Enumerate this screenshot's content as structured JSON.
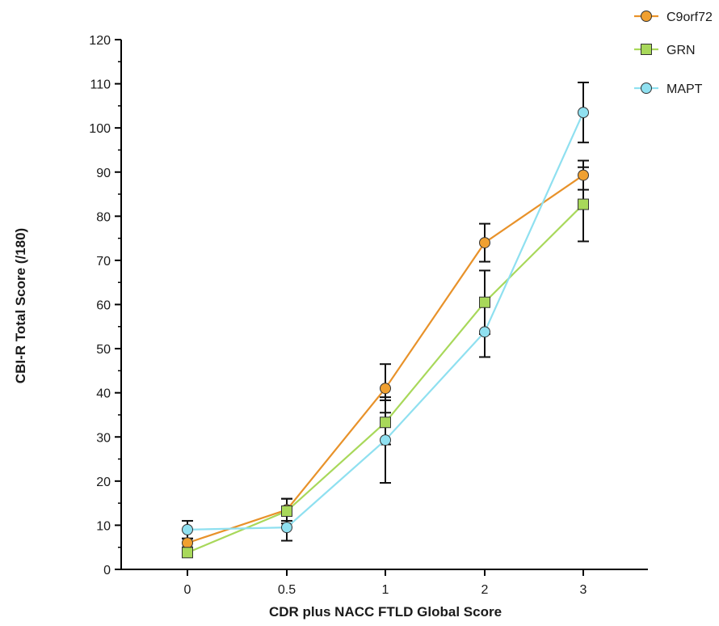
{
  "chart_data": {
    "type": "line",
    "title": "",
    "xlabel": "CDR plus NACC FTLD Global Score",
    "ylabel": "CBI-R Total Score (/180)",
    "categories": [
      "0",
      "0.5",
      "1",
      "2",
      "3"
    ],
    "ylim": [
      0,
      120
    ],
    "yticks": [
      0,
      10,
      20,
      30,
      40,
      50,
      60,
      70,
      80,
      90,
      100,
      110,
      120
    ],
    "grid": false,
    "legend_position": "top-right",
    "series": [
      {
        "name": "C9orf72",
        "marker": "circle",
        "color": "#f0a030",
        "line_color": "#e8922a",
        "values": [
          6.0,
          13.5,
          41.0,
          74.0,
          89.3
        ],
        "error": [
          1.0,
          2.5,
          5.5,
          4.3,
          3.3
        ]
      },
      {
        "name": "GRN",
        "marker": "square",
        "color": "#a8d85a",
        "line_color": "#a8d85a",
        "values": [
          3.8,
          13.2,
          33.3,
          60.5,
          82.7
        ],
        "error": [
          1.0,
          2.8,
          5.0,
          7.2,
          8.4
        ]
      },
      {
        "name": "MAPT",
        "marker": "circle",
        "color": "#8fe0f0",
        "line_color": "#8fe0f0",
        "values": [
          9.0,
          9.5,
          29.3,
          53.8,
          103.5
        ],
        "error": [
          2.0,
          3.0,
          9.7,
          5.7,
          6.8
        ]
      }
    ]
  }
}
